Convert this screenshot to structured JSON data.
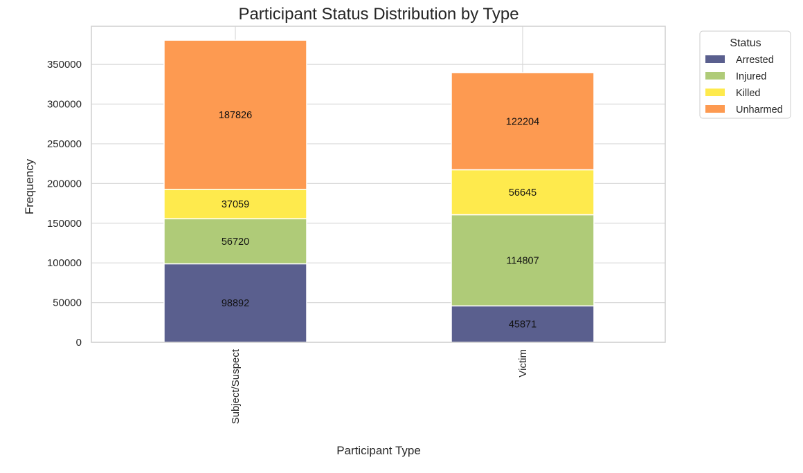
{
  "chart_data": {
    "type": "bar",
    "stacked": true,
    "title": "Participant Status Distribution by Type",
    "xlabel": "Participant Type",
    "ylabel": "Frequency",
    "categories": [
      "Subject/Suspect",
      "Victim"
    ],
    "ylim": [
      0,
      398000
    ],
    "yticks": [
      0,
      50000,
      100000,
      150000,
      200000,
      250000,
      300000,
      350000
    ],
    "grid": true,
    "legend": {
      "title": "Status",
      "placement": "outside-top-right"
    },
    "series": [
      {
        "name": "Arrested",
        "values": [
          98892,
          45871
        ],
        "color": "#5a5f8e"
      },
      {
        "name": "Injured",
        "values": [
          56720,
          114807
        ],
        "color": "#afcb78"
      },
      {
        "name": "Killed",
        "values": [
          37059,
          56645
        ],
        "color": "#feea4d"
      },
      {
        "name": "Unharmed",
        "values": [
          187826,
          122204
        ],
        "color": "#fd9a51"
      }
    ]
  }
}
